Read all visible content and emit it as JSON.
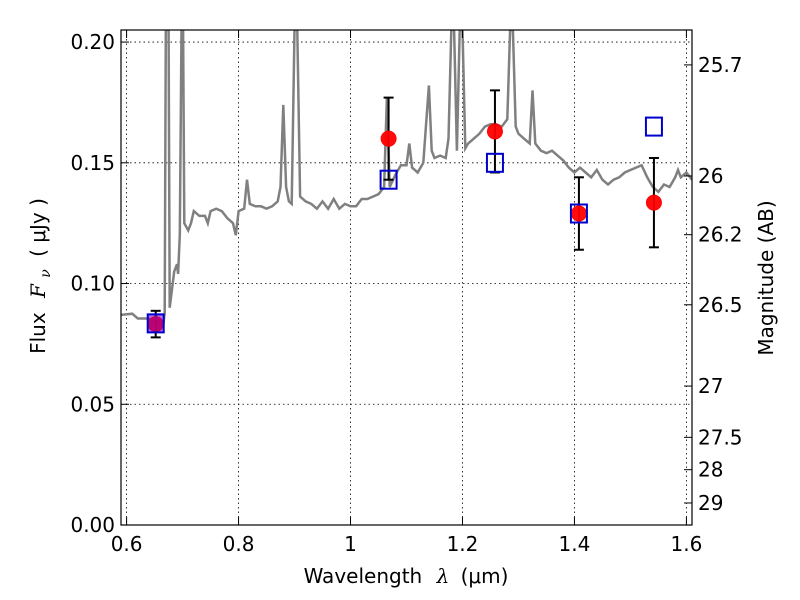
{
  "chart_data": {
    "type": "scatter",
    "xlabel": "Wavelength",
    "xlabel_symbol": "λ",
    "xlabel_unit": "(μm)",
    "ylabel": "Flux",
    "ylabel_symbol": "F",
    "ylabel_subscript": "ν",
    "ylabel_unit": "( μJy )",
    "ylabel_right": "Magnitude (AB)",
    "xlim": [
      0.59,
      1.61
    ],
    "ylim": [
      0.0,
      0.205
    ],
    "grid": true,
    "x_ticks": [
      {
        "value": 0.6,
        "label": "0.6"
      },
      {
        "value": 0.8,
        "label": "0.8"
      },
      {
        "value": 1.0,
        "label": "1"
      },
      {
        "value": 1.2,
        "label": "1.2"
      },
      {
        "value": 1.4,
        "label": "1.4"
      },
      {
        "value": 1.6,
        "label": "1.6"
      }
    ],
    "y_ticks": [
      {
        "value": 0.0,
        "label": "0.00"
      },
      {
        "value": 0.05,
        "label": "0.05"
      },
      {
        "value": 0.1,
        "label": "0.10"
      },
      {
        "value": 0.15,
        "label": "0.15"
      },
      {
        "value": 0.2,
        "label": "0.20"
      }
    ],
    "right_ticks": [
      {
        "value": 25.7,
        "label": "25.7"
      },
      {
        "value": 26.0,
        "label": "26"
      },
      {
        "value": 26.2,
        "label": "26.2"
      },
      {
        "value": 26.5,
        "label": "26.5"
      },
      {
        "value": 27.0,
        "label": "27"
      },
      {
        "value": 27.5,
        "label": "27.5"
      },
      {
        "value": 28.0,
        "label": "28"
      },
      {
        "value": 29.0,
        "label": "29"
      }
    ],
    "series": [
      {
        "marker": "circle",
        "color": "#ff0000",
        "points": [
          {
            "x": 0.652,
            "y": 0.0832,
            "err": 0.0055
          },
          {
            "x": 1.068,
            "y": 0.16,
            "err": 0.017
          },
          {
            "x": 1.258,
            "y": 0.163,
            "err": 0.017
          },
          {
            "x": 1.408,
            "y": 0.129,
            "err": 0.015
          },
          {
            "x": 1.542,
            "y": 0.1335,
            "err": 0.0185
          }
        ]
      },
      {
        "marker": "square",
        "color": "#0000cc",
        "points": [
          {
            "x": 0.652,
            "y": 0.0835
          },
          {
            "x": 1.068,
            "y": 0.143
          },
          {
            "x": 1.258,
            "y": 0.15
          },
          {
            "x": 1.408,
            "y": 0.129
          },
          {
            "x": 1.542,
            "y": 0.165
          }
        ]
      },
      {
        "marker": "line",
        "color": "#808080",
        "points": [
          [
            0.59,
            0.087
          ],
          [
            0.61,
            0.0875
          ],
          [
            0.62,
            0.0855
          ],
          [
            0.64,
            0.0855
          ],
          [
            0.66,
            0.0835
          ],
          [
            0.665,
            0.082
          ],
          [
            0.668,
            0.088
          ],
          [
            0.67,
            0.205
          ],
          [
            0.675,
            0.205
          ],
          [
            0.677,
            0.09
          ],
          [
            0.685,
            0.105
          ],
          [
            0.69,
            0.108
          ],
          [
            0.692,
            0.104
          ],
          [
            0.695,
            0.12
          ],
          [
            0.698,
            0.205
          ],
          [
            0.701,
            0.205
          ],
          [
            0.703,
            0.125
          ],
          [
            0.71,
            0.122
          ],
          [
            0.715,
            0.125
          ],
          [
            0.72,
            0.13
          ],
          [
            0.73,
            0.128
          ],
          [
            0.74,
            0.128
          ],
          [
            0.745,
            0.125
          ],
          [
            0.75,
            0.13
          ],
          [
            0.76,
            0.131
          ],
          [
            0.77,
            0.13
          ],
          [
            0.78,
            0.127
          ],
          [
            0.79,
            0.125
          ],
          [
            0.795,
            0.12
          ],
          [
            0.8,
            0.13
          ],
          [
            0.81,
            0.131
          ],
          [
            0.815,
            0.143
          ],
          [
            0.82,
            0.133
          ],
          [
            0.83,
            0.132
          ],
          [
            0.84,
            0.132
          ],
          [
            0.85,
            0.131
          ],
          [
            0.86,
            0.132
          ],
          [
            0.87,
            0.134
          ],
          [
            0.875,
            0.14
          ],
          [
            0.88,
            0.174
          ],
          [
            0.885,
            0.14
          ],
          [
            0.89,
            0.134
          ],
          [
            0.895,
            0.133
          ],
          [
            0.9,
            0.205
          ],
          [
            0.905,
            0.205
          ],
          [
            0.91,
            0.136
          ],
          [
            0.92,
            0.134
          ],
          [
            0.93,
            0.133
          ],
          [
            0.94,
            0.131
          ],
          [
            0.95,
            0.134
          ],
          [
            0.96,
            0.131
          ],
          [
            0.97,
            0.135
          ],
          [
            0.98,
            0.131
          ],
          [
            0.99,
            0.133
          ],
          [
            1.0,
            0.132
          ],
          [
            1.01,
            0.132
          ],
          [
            1.02,
            0.135
          ],
          [
            1.03,
            0.135
          ],
          [
            1.04,
            0.136
          ],
          [
            1.05,
            0.137
          ],
          [
            1.06,
            0.14
          ],
          [
            1.065,
            0.177
          ],
          [
            1.07,
            0.14
          ],
          [
            1.08,
            0.145
          ],
          [
            1.09,
            0.149
          ],
          [
            1.1,
            0.149
          ],
          [
            1.105,
            0.158
          ],
          [
            1.11,
            0.148
          ],
          [
            1.12,
            0.146
          ],
          [
            1.13,
            0.15
          ],
          [
            1.14,
            0.182
          ],
          [
            1.145,
            0.155
          ],
          [
            1.15,
            0.152
          ],
          [
            1.16,
            0.153
          ],
          [
            1.17,
            0.152
          ],
          [
            1.175,
            0.16
          ],
          [
            1.18,
            0.205
          ],
          [
            1.185,
            0.205
          ],
          [
            1.19,
            0.155
          ],
          [
            1.195,
            0.205
          ],
          [
            1.2,
            0.205
          ],
          [
            1.205,
            0.156
          ],
          [
            1.21,
            0.158
          ],
          [
            1.22,
            0.16
          ],
          [
            1.23,
            0.162
          ],
          [
            1.24,
            0.165
          ],
          [
            1.25,
            0.166
          ],
          [
            1.26,
            0.166
          ],
          [
            1.27,
            0.165
          ],
          [
            1.28,
            0.168
          ],
          [
            1.285,
            0.205
          ],
          [
            1.29,
            0.205
          ],
          [
            1.295,
            0.165
          ],
          [
            1.3,
            0.162
          ],
          [
            1.31,
            0.16
          ],
          [
            1.32,
            0.158
          ],
          [
            1.325,
            0.18
          ],
          [
            1.33,
            0.158
          ],
          [
            1.34,
            0.155
          ],
          [
            1.35,
            0.154
          ],
          [
            1.36,
            0.155
          ],
          [
            1.37,
            0.153
          ],
          [
            1.38,
            0.151
          ],
          [
            1.39,
            0.148
          ],
          [
            1.4,
            0.146
          ],
          [
            1.41,
            0.148
          ],
          [
            1.42,
            0.146
          ],
          [
            1.43,
            0.144
          ],
          [
            1.44,
            0.147
          ],
          [
            1.45,
            0.143
          ],
          [
            1.46,
            0.141
          ],
          [
            1.47,
            0.143
          ],
          [
            1.48,
            0.144
          ],
          [
            1.49,
            0.146
          ],
          [
            1.5,
            0.147
          ],
          [
            1.51,
            0.148
          ],
          [
            1.52,
            0.149
          ],
          [
            1.53,
            0.144
          ],
          [
            1.54,
            0.14
          ],
          [
            1.55,
            0.138
          ],
          [
            1.56,
            0.141
          ],
          [
            1.57,
            0.14
          ],
          [
            1.58,
            0.144
          ],
          [
            1.585,
            0.147
          ],
          [
            1.59,
            0.144
          ],
          [
            1.6,
            0.146
          ],
          [
            1.61,
            0.143
          ]
        ]
      }
    ]
  }
}
